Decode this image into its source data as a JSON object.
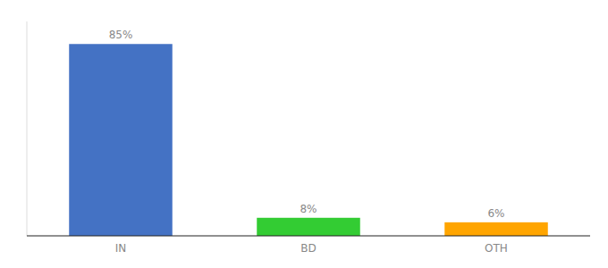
{
  "chart_data": {
    "type": "bar",
    "categories": [
      "IN",
      "BD",
      "OTH"
    ],
    "values": [
      85,
      8,
      6
    ],
    "value_labels": [
      "85%",
      "8%",
      "6%"
    ],
    "colors": [
      "#4472C4",
      "#33CC33",
      "#FFA500"
    ],
    "ylim": [
      0,
      95
    ],
    "data_labels": true,
    "tick_labels": "x",
    "grid": false
  }
}
